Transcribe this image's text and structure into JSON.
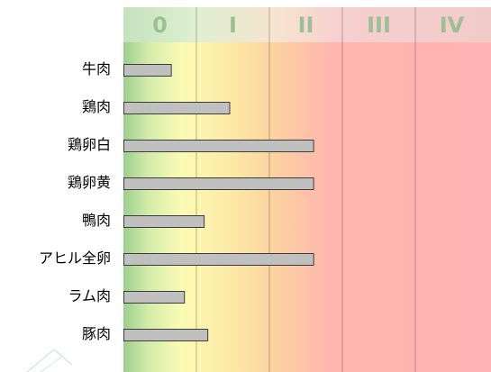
{
  "chart_data": {
    "type": "bar",
    "orientation": "horizontal",
    "title": "",
    "xlabel": "",
    "ylabel": "",
    "class_labels": [
      "0",
      "I",
      "II",
      "III",
      "IV"
    ],
    "xlim": [
      0,
      5
    ],
    "categories": [
      "牛肉",
      "鶏肉",
      "鶏卵白",
      "鶏卵黄",
      "鴨肉",
      "アヒル全卵",
      "ラム肉",
      "豚肉"
    ],
    "values": [
      0.65,
      1.45,
      2.6,
      2.6,
      1.1,
      2.6,
      0.83,
      1.15
    ],
    "bar_color": "#c0c0c0",
    "header_background": "#d6e9d0",
    "header_text_color": "#9cbf95",
    "zone_colors": [
      "#c8e6a8",
      "#fbfbb0",
      "#fcd2a0",
      "#ffb3b3",
      "#ffb3b3"
    ],
    "grid": true,
    "legend": "none"
  }
}
